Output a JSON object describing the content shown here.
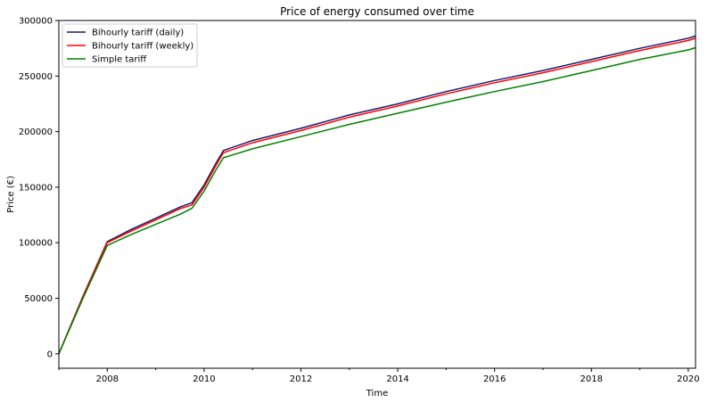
{
  "chart_data": {
    "type": "line",
    "title": "Price of energy consumed over time",
    "xlabel": "Time",
    "ylabel": "Price (€)",
    "xlim": [
      2007.0,
      2020.15
    ],
    "ylim": [
      -13000,
      300000
    ],
    "xticks": [
      2008,
      2010,
      2012,
      2014,
      2016,
      2018,
      2020
    ],
    "yticks": [
      0,
      50000,
      100000,
      150000,
      200000,
      250000,
      300000
    ],
    "x_minor_ticks": [
      2007,
      2009,
      2011,
      2013,
      2015,
      2017,
      2019
    ],
    "grid": false,
    "legend_position": "top-left",
    "x": [
      2007.0,
      2007.5,
      2008.0,
      2008.5,
      2009.0,
      2009.5,
      2009.75,
      2010.0,
      2010.25,
      2010.4,
      2011.0,
      2012.0,
      2013.0,
      2014.0,
      2015.0,
      2016.0,
      2017.0,
      2018.0,
      2019.0,
      2020.0,
      2020.15
    ],
    "series": [
      {
        "name": "Bihourly tariff (daily)",
        "color": "#1a1a6e",
        "values": [
          0,
          52000,
          101000,
          112000,
          122000,
          132000,
          136000,
          152000,
          172000,
          183000,
          192000,
          203000,
          215000,
          225000,
          236000,
          246000,
          255000,
          265000,
          275000,
          284000,
          286000
        ]
      },
      {
        "name": "Bihourly tariff (weekly)",
        "color": "#ff0000",
        "values": [
          0,
          51500,
          100000,
          110500,
          120500,
          130500,
          134000,
          150000,
          170000,
          181000,
          190000,
          201000,
          213000,
          223000,
          234000,
          244000,
          253000,
          263000,
          273000,
          282000,
          284000
        ]
      },
      {
        "name": "Simple tariff",
        "color": "#008000",
        "values": [
          0,
          50000,
          97500,
          107500,
          116500,
          125500,
          131000,
          146500,
          166000,
          176500,
          184500,
          195500,
          206500,
          216500,
          226500,
          236000,
          245000,
          255000,
          265000,
          273500,
          275500
        ]
      }
    ]
  }
}
